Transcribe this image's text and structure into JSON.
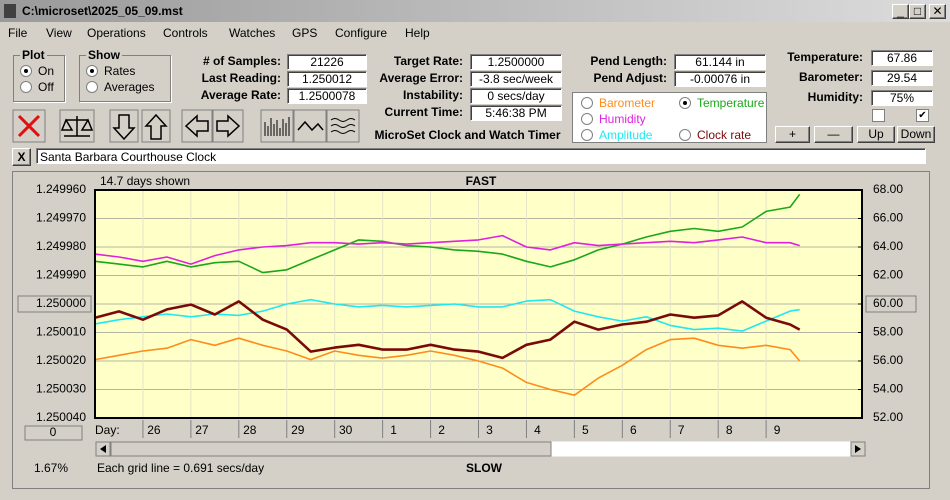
{
  "window": {
    "title": "C:\\microset\\2025_05_09.mst"
  },
  "menu": [
    "File",
    "View",
    "Operations",
    "Controls",
    "Watches",
    "GPS",
    "Configure",
    "Help"
  ],
  "plot_group": {
    "title": "Plot",
    "options": [
      "On",
      "Off"
    ],
    "selected": 0
  },
  "show_group": {
    "title": "Show",
    "options": [
      "Rates",
      "Averages"
    ],
    "selected": 0
  },
  "readings": [
    {
      "label": "# of Samples:",
      "value": "21226"
    },
    {
      "label": "Last Reading:",
      "value": "1.250012"
    },
    {
      "label": "Average Rate:",
      "value": "1.2500078"
    }
  ],
  "timing": [
    {
      "label": "Target Rate:",
      "value": "1.2500000"
    },
    {
      "label": "Average Error:",
      "value": "-3.8 sec/week"
    },
    {
      "label": "Instability:",
      "value": "0 secs/day"
    },
    {
      "label": "Current Time:",
      "value": "5:46:38 PM"
    }
  ],
  "caption": "MicroSet Clock and Watch Timer",
  "pendulum": [
    {
      "label": "Pend Length:",
      "value": "61.144 in"
    },
    {
      "label": "Pend Adjust:",
      "value": "-0.00076 in"
    }
  ],
  "environment": [
    {
      "label": "Temperature:",
      "value": "67.86"
    },
    {
      "label": "Barometer:",
      "value": "29.54"
    },
    {
      "label": "Humidity:",
      "value": "75%"
    }
  ],
  "checkboxes": [
    false,
    true
  ],
  "scale_buttons": [
    "+",
    "—",
    "Up",
    "Down"
  ],
  "watch": {
    "close": "X",
    "name": "Santa Barbara Courthouse Clock"
  },
  "chart_data": {
    "type": "line",
    "days_shown": "14.7 days shown",
    "top_label": "FAST",
    "bottom_label": "SLOW",
    "x_label": "Day:",
    "grid_note": "Each grid line = 0.691 secs/day",
    "left_status": "1.67%",
    "left_button": "0",
    "legend_selected": 1,
    "grid": true,
    "yreversed": true,
    "xlim": [
      0,
      16
    ],
    "xticks": [
      {
        "value": 1,
        "label": "26"
      },
      {
        "value": 2,
        "label": "27"
      },
      {
        "value": 3,
        "label": "28"
      },
      {
        "value": 4,
        "label": "29"
      },
      {
        "value": 5,
        "label": "30"
      },
      {
        "value": 6,
        "label": "1"
      },
      {
        "value": 7,
        "label": "2"
      },
      {
        "value": 8,
        "label": "3"
      },
      {
        "value": 9,
        "label": "4"
      },
      {
        "value": 10,
        "label": "5"
      },
      {
        "value": 11,
        "label": "6"
      },
      {
        "value": 12,
        "label": "7"
      },
      {
        "value": 13,
        "label": "8"
      },
      {
        "value": 14,
        "label": "9"
      }
    ],
    "ylim": [
      1.24996,
      1.25004
    ],
    "yticks": [
      {
        "value": 1.24996,
        "label": "1.249960"
      },
      {
        "value": 1.24997,
        "label": "1.249970"
      },
      {
        "value": 1.24998,
        "label": "1.249980"
      },
      {
        "value": 1.24999,
        "label": "1.249990"
      },
      {
        "value": 1.25,
        "label": "1.250000"
      },
      {
        "value": 1.25001,
        "label": "1.250010"
      },
      {
        "value": 1.25002,
        "label": "1.250020"
      },
      {
        "value": 1.25003,
        "label": "1.250030"
      },
      {
        "value": 1.25004,
        "label": "1.250040"
      }
    ],
    "y2lim": [
      52,
      68
    ],
    "y2ticks": [
      {
        "value": 68,
        "label": "68.00"
      },
      {
        "value": 66,
        "label": "66.00"
      },
      {
        "value": 64,
        "label": "64.00"
      },
      {
        "value": 62,
        "label": "62.00"
      },
      {
        "value": 60,
        "label": "60.00"
      },
      {
        "value": 58,
        "label": "58.00"
      },
      {
        "value": 56,
        "label": "56.00"
      },
      {
        "value": 54,
        "label": "54.00"
      },
      {
        "value": 52,
        "label": "52.00"
      }
    ],
    "x": [
      0,
      0.5,
      1,
      1.5,
      2,
      2.5,
      3,
      3.5,
      4,
      4.5,
      5,
      5.5,
      6,
      6.5,
      7,
      7.5,
      8,
      8.5,
      9,
      9.5,
      10,
      10.5,
      11,
      11.5,
      12,
      12.5,
      13,
      13.5,
      14,
      14.5,
      14.7
    ],
    "series": [
      {
        "name": "Barometer",
        "color": "#ff8c1a",
        "axis": "y2",
        "values": [
          56.1,
          56.4,
          56.7,
          56.9,
          57.5,
          57.1,
          57.6,
          57.1,
          56.7,
          56.1,
          56.7,
          56.4,
          56.2,
          56.4,
          56.7,
          56.4,
          56.0,
          55.5,
          54.5,
          54.0,
          53.6,
          54.8,
          55.7,
          56.8,
          57.5,
          57.6,
          57.1,
          56.9,
          57.1,
          56.8,
          56.0
        ]
      },
      {
        "name": "Temperature",
        "color": "#1aa81a",
        "axis": "y2",
        "values": [
          63.0,
          62.8,
          62.6,
          63.0,
          62.6,
          62.9,
          63.0,
          62.2,
          62.4,
          63.1,
          63.8,
          64.5,
          64.4,
          64.1,
          64.0,
          63.8,
          63.7,
          63.5,
          63.0,
          62.6,
          63.1,
          63.8,
          64.2,
          64.7,
          65.1,
          65.3,
          65.1,
          65.4,
          66.5,
          66.8,
          67.7
        ]
      },
      {
        "name": "Humidity",
        "color": "#e020e0",
        "axis": "y2",
        "values": [
          63.5,
          63.3,
          63.0,
          63.3,
          62.8,
          63.4,
          63.8,
          64.0,
          64.1,
          64.3,
          64.3,
          64.2,
          64.3,
          64.2,
          64.3,
          64.4,
          64.5,
          64.8,
          64.0,
          63.8,
          64.3,
          64.1,
          64.2,
          64.3,
          64.4,
          64.3,
          64.5,
          64.7,
          64.3,
          64.3,
          64.1
        ]
      },
      {
        "name": "Amplitude",
        "color": "#20e8f0",
        "axis": "y2",
        "values": [
          58.6,
          58.9,
          59.1,
          59.3,
          59.1,
          59.3,
          59.2,
          59.5,
          60.0,
          60.3,
          60.0,
          59.8,
          59.9,
          59.8,
          59.9,
          60.0,
          59.8,
          59.8,
          60.2,
          60.3,
          59.5,
          59.1,
          58.8,
          59.1,
          58.5,
          58.2,
          58.3,
          58.1,
          58.8,
          59.5,
          59.6
        ]
      },
      {
        "name": "Clock rate",
        "color": "#7a0a0a",
        "axis": "y",
        "values": [
          1.2500048,
          1.2500026,
          1.2500055,
          1.2500019,
          1.2500002,
          1.2500037,
          1.2499991,
          1.2500055,
          1.250009,
          1.2500167,
          1.2500153,
          1.2500143,
          1.250016,
          1.250016,
          1.2500143,
          1.250016,
          1.2500167,
          1.2500189,
          1.2500143,
          1.2500125,
          1.2500062,
          1.250009,
          1.2500072,
          1.2500062,
          1.2500037,
          1.2500048,
          1.250004,
          1.2499991,
          1.2500048,
          1.2500072,
          1.250009
        ]
      }
    ]
  }
}
